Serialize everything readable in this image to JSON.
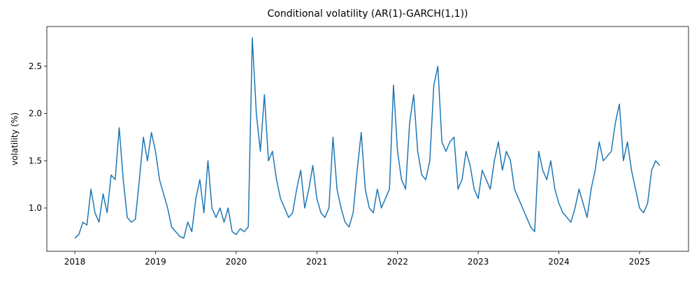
{
  "chart_data": {
    "type": "line",
    "title": "Conditional volatility (AR(1)-GARCH(1,1))",
    "y_label": "volatility (%)",
    "x": [
      2018,
      2018.05,
      2018.1,
      2018.15,
      2018.2,
      2018.25,
      2018.3,
      2018.35,
      2018.4,
      2018.45,
      2018.5,
      2018.55,
      2018.6,
      2018.65,
      2018.7,
      2018.75,
      2018.8,
      2018.85,
      2018.9,
      2018.95,
      2019,
      2019.05,
      2019.1,
      2019.15,
      2019.2,
      2019.25,
      2019.3,
      2019.35,
      2019.4,
      2019.45,
      2019.5,
      2019.55,
      2019.6,
      2019.65,
      2019.7,
      2019.75,
      2019.8,
      2019.85,
      2019.9,
      2019.95,
      2020,
      2020.05,
      2020.1,
      2020.15,
      2020.2,
      2020.25,
      2020.3,
      2020.35,
      2020.4,
      2020.45,
      2020.5,
      2020.55,
      2020.6,
      2020.65,
      2020.7,
      2020.75,
      2020.8,
      2020.85,
      2020.9,
      2020.95,
      2021,
      2021.05,
      2021.1,
      2021.15,
      2021.2,
      2021.25,
      2021.3,
      2021.35,
      2021.4,
      2021.45,
      2021.5,
      2021.55,
      2021.6,
      2021.65,
      2021.7,
      2021.75,
      2021.8,
      2021.85,
      2021.9,
      2021.95,
      2022,
      2022.05,
      2022.1,
      2022.15,
      2022.2,
      2022.25,
      2022.3,
      2022.35,
      2022.4,
      2022.45,
      2022.5,
      2022.55,
      2022.6,
      2022.65,
      2022.7,
      2022.75,
      2022.8,
      2022.85,
      2022.9,
      2022.95,
      2023,
      2023.05,
      2023.1,
      2023.15,
      2023.2,
      2023.25,
      2023.3,
      2023.35,
      2023.4,
      2023.45,
      2023.5,
      2023.55,
      2023.6,
      2023.65,
      2023.7,
      2023.75,
      2023.8,
      2023.85,
      2023.9,
      2023.95,
      2024,
      2024.05,
      2024.1,
      2024.15,
      2024.2,
      2024.25,
      2024.3,
      2024.35,
      2024.4,
      2024.45,
      2024.5,
      2024.55,
      2024.6,
      2024.65,
      2024.7,
      2024.75,
      2024.8,
      2024.85,
      2024.9,
      2024.95,
      2025,
      2025.05,
      2025.1,
      2025.15,
      2025.2,
      2025.25
    ],
    "series": [
      {
        "color": "#1f77b4",
        "values": [
          0.68,
          0.72,
          0.85,
          0.82,
          1.2,
          0.95,
          0.85,
          1.15,
          0.95,
          1.35,
          1.3,
          1.85,
          1.3,
          0.9,
          0.85,
          0.88,
          1.3,
          1.75,
          1.5,
          1.8,
          1.6,
          1.3,
          1.15,
          1.0,
          0.8,
          0.75,
          0.7,
          0.68,
          0.85,
          0.75,
          1.1,
          1.3,
          0.95,
          1.5,
          1.0,
          0.9,
          1.0,
          0.85,
          1.0,
          0.75,
          0.72,
          0.78,
          0.75,
          0.8,
          2.8,
          2.0,
          1.6,
          2.2,
          1.5,
          1.6,
          1.3,
          1.1,
          1.0,
          0.9,
          0.95,
          1.2,
          1.4,
          1.0,
          1.2,
          1.45,
          1.1,
          0.95,
          0.9,
          1.0,
          1.75,
          1.2,
          1.0,
          0.85,
          0.8,
          0.95,
          1.4,
          1.8,
          1.2,
          1.0,
          0.95,
          1.2,
          1.0,
          1.1,
          1.2,
          2.3,
          1.6,
          1.3,
          1.2,
          1.9,
          2.2,
          1.6,
          1.35,
          1.3,
          1.5,
          2.3,
          2.5,
          1.7,
          1.6,
          1.7,
          1.75,
          1.2,
          1.3,
          1.6,
          1.45,
          1.2,
          1.1,
          1.4,
          1.3,
          1.2,
          1.5,
          1.7,
          1.4,
          1.6,
          1.5,
          1.2,
          1.1,
          1.0,
          0.9,
          0.8,
          0.75,
          1.6,
          1.4,
          1.3,
          1.5,
          1.2,
          1.05,
          0.95,
          0.9,
          0.85,
          1.0,
          1.2,
          1.05,
          0.9,
          1.2,
          1.4,
          1.7,
          1.5,
          1.55,
          1.6,
          1.9,
          2.1,
          1.5,
          1.7,
          1.4,
          1.2,
          1.0,
          0.95,
          1.05,
          1.4,
          1.5,
          1.45
        ]
      }
    ],
    "xlim": [
      2017.653,
      2025.607
    ],
    "xticks": [
      2018,
      2019,
      2020,
      2021,
      2022,
      2023,
      2024,
      2025
    ],
    "ylim": [
      0.542,
      2.921
    ],
    "yticks": [
      {
        "value": 1,
        "label": "1.0"
      },
      1.5,
      {
        "value": 2,
        "label": "2.0"
      },
      2.5
    ]
  }
}
